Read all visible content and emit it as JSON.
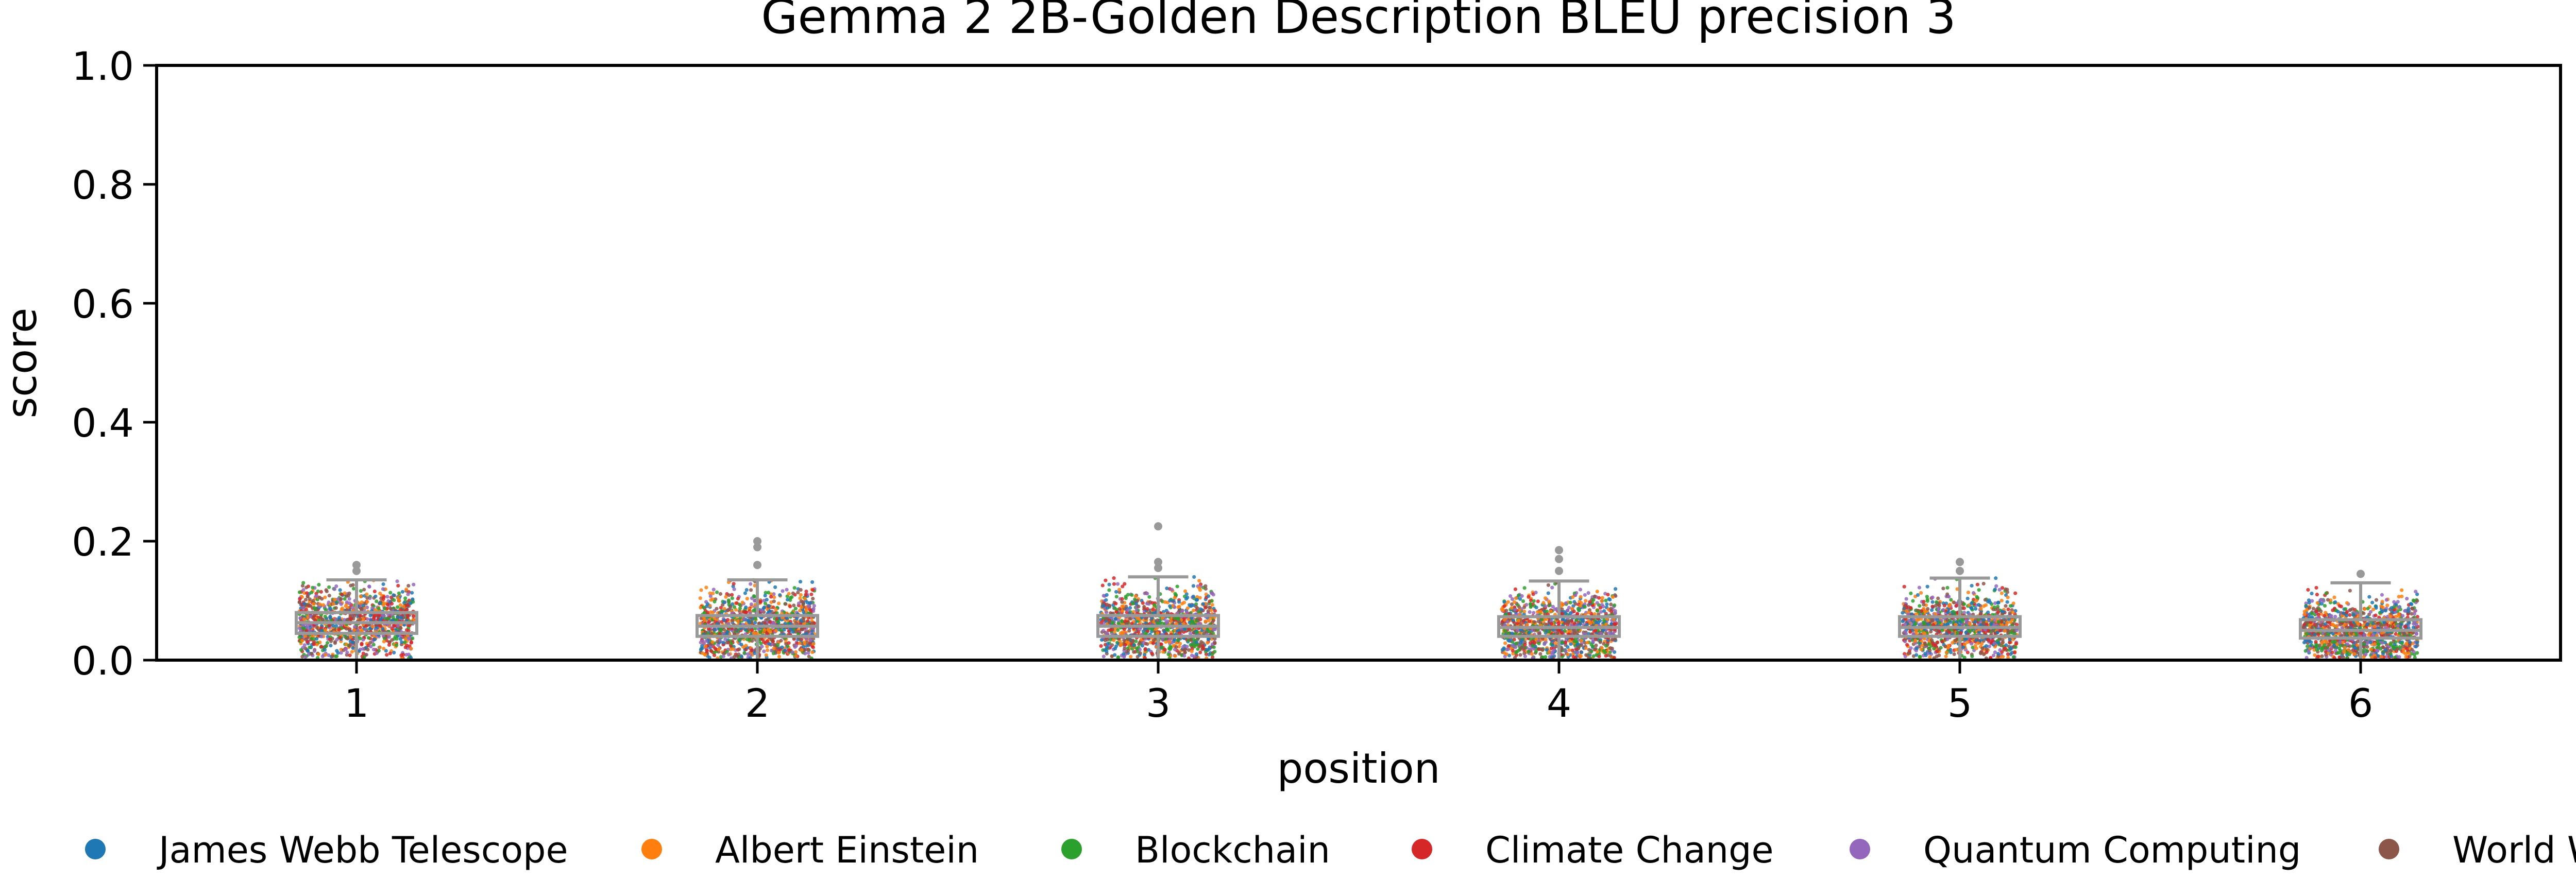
{
  "chart_data": {
    "type": "box-strip",
    "title": "Gemma 2 2B-Golden Description BLEU precision 3",
    "xlabel": "position",
    "ylabel": "score",
    "categories": [
      "1",
      "2",
      "3",
      "4",
      "5",
      "6"
    ],
    "ylim": [
      0,
      1.0
    ],
    "yticks": [
      "0.0",
      "0.2",
      "0.4",
      "0.6",
      "0.8",
      "1.0"
    ],
    "grid": false,
    "legend_position": "bottom",
    "series": [
      {
        "name": "James Webb Telescope",
        "color": "#1f77b4"
      },
      {
        "name": "Albert Einstein",
        "color": "#ff7f0e"
      },
      {
        "name": "Blockchain",
        "color": "#2ca02c"
      },
      {
        "name": "Climate Change",
        "color": "#d62728"
      },
      {
        "name": "Quantum Computing",
        "color": "#9467bd"
      },
      {
        "name": "World War II",
        "color": "#8c564b"
      }
    ],
    "boxes": [
      {
        "category": "1",
        "whislo": 0.0,
        "q1": 0.045,
        "median": 0.063,
        "q3": 0.08,
        "whishi": 0.135,
        "fliers": [
          0.15,
          0.16
        ]
      },
      {
        "category": "2",
        "whislo": 0.0,
        "q1": 0.04,
        "median": 0.057,
        "q3": 0.075,
        "whishi": 0.135,
        "fliers": [
          0.16,
          0.19,
          0.2
        ]
      },
      {
        "category": "3",
        "whislo": 0.0,
        "q1": 0.04,
        "median": 0.057,
        "q3": 0.075,
        "whishi": 0.14,
        "fliers": [
          0.155,
          0.165,
          0.225
        ]
      },
      {
        "category": "4",
        "whislo": 0.0,
        "q1": 0.04,
        "median": 0.055,
        "q3": 0.073,
        "whishi": 0.133,
        "fliers": [
          0.15,
          0.17,
          0.185
        ]
      },
      {
        "category": "5",
        "whislo": 0.0,
        "q1": 0.04,
        "median": 0.055,
        "q3": 0.073,
        "whishi": 0.138,
        "fliers": [
          0.15,
          0.165
        ]
      },
      {
        "category": "6",
        "whislo": 0.0,
        "q1": 0.037,
        "median": 0.05,
        "q3": 0.068,
        "whishi": 0.13,
        "fliers": [
          0.145
        ]
      }
    ]
  },
  "colors": {
    "box": "#999999",
    "axis": "#000000",
    "background": "#ffffff"
  }
}
